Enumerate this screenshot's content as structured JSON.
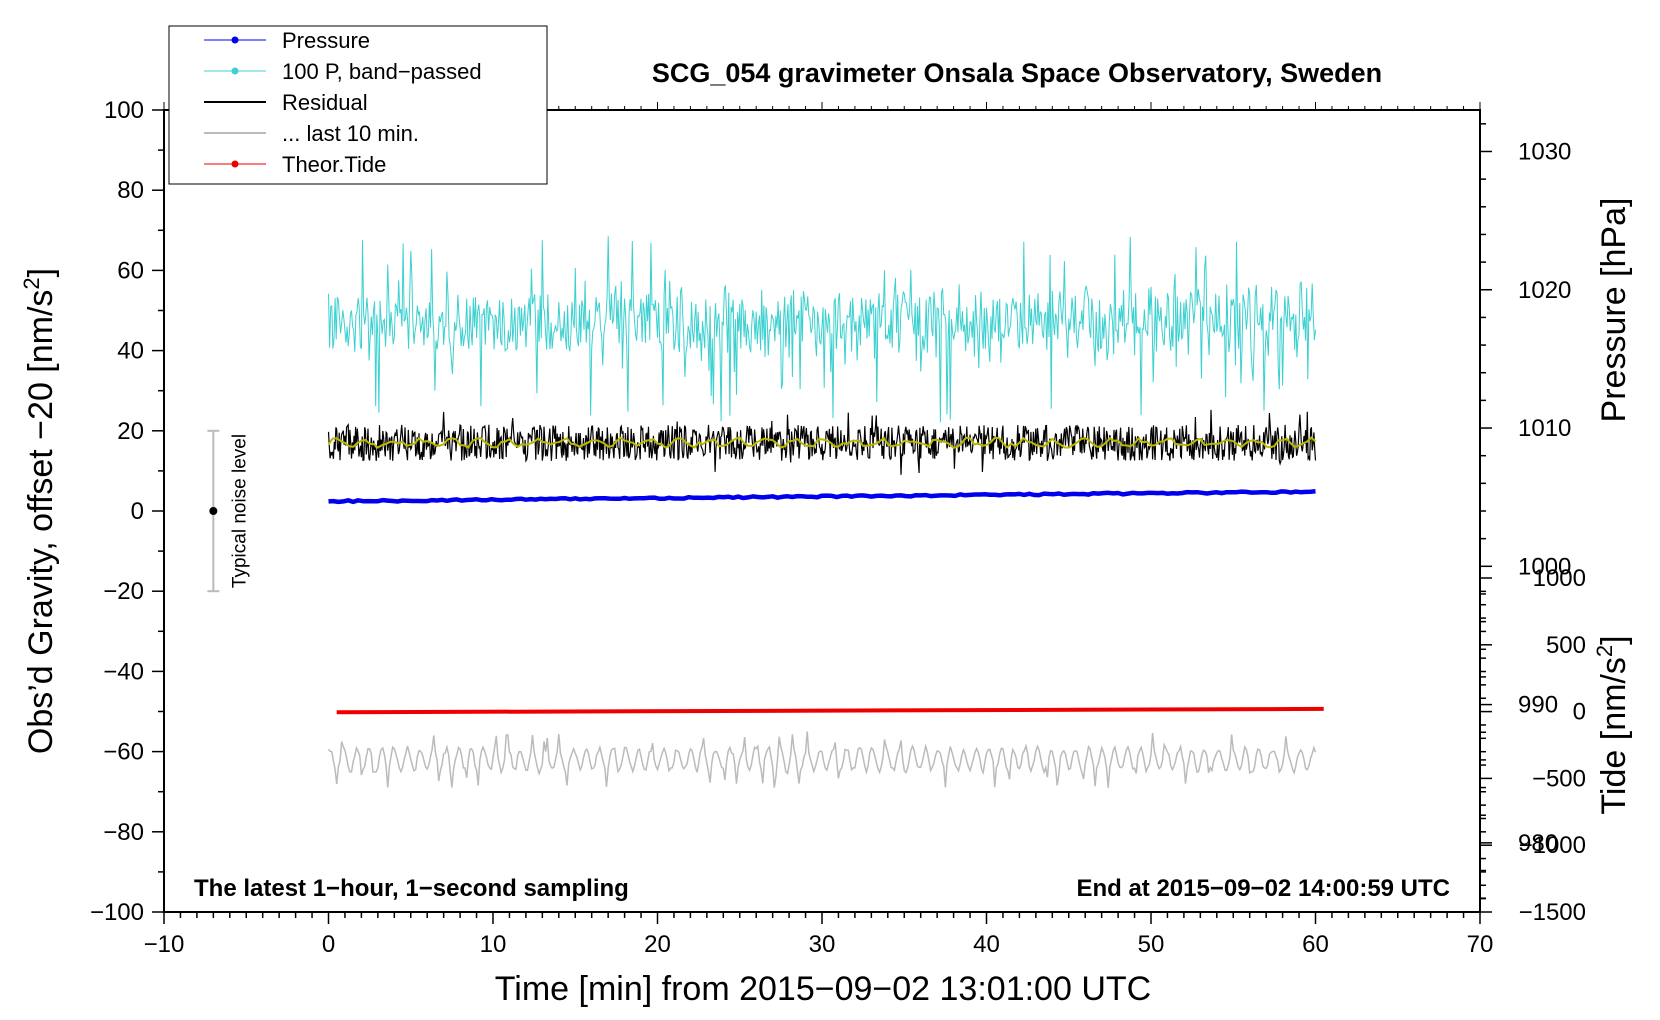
{
  "chart_data": {
    "type": "line",
    "title": "SCG_054 gravimeter Onsala Space Observatory, Sweden",
    "xlabel": "Time [min] from 2015−09−02 13:01:00 UTC",
    "ylabel_left": {
      "main": "Obs’d Gravity, offset −20 [nm/s",
      "sup": "2",
      "end": "]"
    },
    "ylabel_pressure": "Pressure [hPa]",
    "ylabel_tide": {
      "main": "Tide [nm/s",
      "sup": "2",
      "end": "]"
    },
    "xlim": [
      -10,
      70
    ],
    "ylim_left": [
      -100,
      100
    ],
    "ylim_pressure": [
      975,
      1033
    ],
    "ylim_tide": [
      -1500,
      1000
    ],
    "x_ticks": [
      -10,
      0,
      10,
      20,
      30,
      40,
      50,
      60,
      70
    ],
    "x_tick_labels": [
      "−10",
      "0",
      "10",
      "20",
      "30",
      "40",
      "50",
      "60",
      "70"
    ],
    "y_left_ticks": [
      100,
      80,
      60,
      40,
      20,
      0,
      -20,
      -40,
      -60,
      -80,
      -100
    ],
    "y_left_tick_labels": [
      "100",
      "80",
      "60",
      "40",
      "20",
      "0",
      "−20",
      "−40",
      "−60",
      "−80",
      "−100"
    ],
    "y_pressure_ticks": [
      1030,
      1020,
      1010,
      1000,
      990,
      980
    ],
    "y_pressure_tick_labels": [
      "1030",
      "1020",
      "1010",
      "1000",
      "990",
      "980"
    ],
    "y_tide_ticks": [
      1000,
      500,
      0,
      -500,
      -1000,
      -1500
    ],
    "y_tide_tick_labels": [
      "1000",
      "500",
      "0",
      "−500",
      "−1000",
      "−1500"
    ],
    "note_left": "The latest 1−hour, 1−second sampling",
    "note_right": "End at 2015−09−02 14:00:59 UTC",
    "noise_indicator": {
      "label": "Typical noise level",
      "x": -7,
      "center": 0,
      "low": -20,
      "high": 20
    },
    "legend": [
      {
        "name": "Pressure",
        "color": "#0000ee",
        "marker": true
      },
      {
        "name": "100 P, band−passed",
        "color": "#3cd0d0",
        "marker": true
      },
      {
        "name": "Residual",
        "color": "#000000",
        "marker": false
      },
      {
        "name": "... last 10 min.",
        "color": "#bbbbbb",
        "marker": false
      },
      {
        "name": "Theor.Tide",
        "color": "#ee0000",
        "marker": true
      }
    ],
    "series": [
      {
        "name": "Pressure",
        "axis": "pressure",
        "x_range": [
          0,
          60
        ],
        "start": 1004.7,
        "end": 1005.4,
        "color": "#0000ee"
      },
      {
        "name": "100 P, band−passed",
        "axis": "left",
        "x_range": [
          0,
          60
        ],
        "mean": 47,
        "min": 22,
        "max": 69,
        "color": "#3cd0d0"
      },
      {
        "name": "Residual",
        "axis": "left",
        "x_range": [
          0,
          60
        ],
        "mean": 17,
        "min": 9,
        "max": 26,
        "color": "#000000"
      },
      {
        "name": "Residual smoothed",
        "axis": "left",
        "x_range": [
          0,
          60
        ],
        "mean": 17,
        "color": "#b8b800"
      },
      {
        "name": "... last 10 min.",
        "axis": "left",
        "x_range": [
          0,
          60
        ],
        "mean": -62,
        "min": -69,
        "max": -55,
        "color": "#bbbbbb"
      },
      {
        "name": "Theor.Tide",
        "axis": "tide",
        "x_range": [
          0.5,
          60.5
        ],
        "start": -5,
        "end": 20,
        "color": "#ee0000"
      }
    ]
  }
}
